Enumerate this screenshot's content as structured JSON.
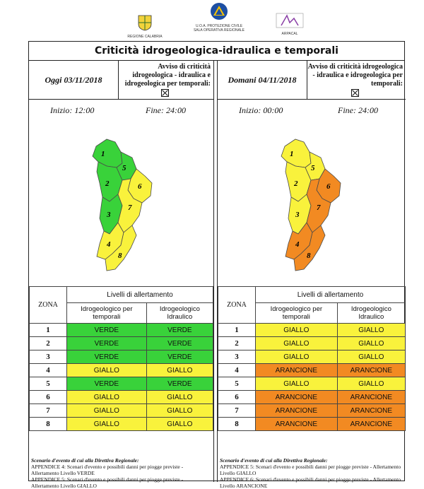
{
  "logos": {
    "regione": "REGIONE CALABRIA",
    "protezione_line1": "U.O.A. PROTEZIONE CIVILE",
    "protezione_line2": "SALA OPERATIVA REGIONALE",
    "arpacal": "ARPACAL"
  },
  "title": "Criticità idrogeologica-idraulica e temporali",
  "avviso_text": "Avviso di criticità idrogeologica - idraulica e idrogeologica per temporali:",
  "table_labels": {
    "zona": "ZONA",
    "livelli": "Livelli di allertamento",
    "col1": "Idrogeologico per temporali",
    "col2": "Idrogeologico Idraulico"
  },
  "panels": [
    {
      "date": "Oggi 03/11/2018",
      "inizio": "Inizio: 12:00",
      "fine": "Fine: 24:00",
      "rows": [
        {
          "zona": "1",
          "temporali": "VERDE",
          "idraulico": "VERDE",
          "c1": "verde",
          "c2": "verde"
        },
        {
          "zona": "2",
          "temporali": "VERDE",
          "idraulico": "VERDE",
          "c1": "verde",
          "c2": "verde"
        },
        {
          "zona": "3",
          "temporali": "VERDE",
          "idraulico": "VERDE",
          "c1": "verde",
          "c2": "verde"
        },
        {
          "zona": "4",
          "temporali": "GIALLO",
          "idraulico": "GIALLO",
          "c1": "giallo",
          "c2": "giallo"
        },
        {
          "zona": "5",
          "temporali": "VERDE",
          "idraulico": "VERDE",
          "c1": "verde",
          "c2": "verde"
        },
        {
          "zona": "6",
          "temporali": "GIALLO",
          "idraulico": "GIALLO",
          "c1": "giallo",
          "c2": "giallo"
        },
        {
          "zona": "7",
          "temporali": "GIALLO",
          "idraulico": "GIALLO",
          "c1": "giallo",
          "c2": "giallo"
        },
        {
          "zona": "8",
          "temporali": "GIALLO",
          "idraulico": "GIALLO",
          "c1": "giallo",
          "c2": "giallo"
        }
      ],
      "scenario_lead": "Scenario d'evento di cui alla Direttiva Regionale:",
      "scenario_1": "APPENDICE 4: Scenari d'evento e possibili danni per piogge previste - Allertamento Livello VERDE",
      "scenario_2": "APPENDICE 5: Scenari d'evento e possibili danni per piogge previste - Allertamento Livello GIALLO"
    },
    {
      "date": "Domani 04/11/2018",
      "inizio": "Inizio: 00:00",
      "fine": "Fine: 24:00",
      "rows": [
        {
          "zona": "1",
          "temporali": "GIALLO",
          "idraulico": "GIALLO",
          "c1": "giallo",
          "c2": "giallo"
        },
        {
          "zona": "2",
          "temporali": "GIALLO",
          "idraulico": "GIALLO",
          "c1": "giallo",
          "c2": "giallo"
        },
        {
          "zona": "3",
          "temporali": "GIALLO",
          "idraulico": "GIALLO",
          "c1": "giallo",
          "c2": "giallo"
        },
        {
          "zona": "4",
          "temporali": "ARANCIONE",
          "idraulico": "ARANCIONE",
          "c1": "arancione",
          "c2": "arancione"
        },
        {
          "zona": "5",
          "temporali": "GIALLO",
          "idraulico": "GIALLO",
          "c1": "giallo",
          "c2": "giallo"
        },
        {
          "zona": "6",
          "temporali": "ARANCIONE",
          "idraulico": "ARANCIONE",
          "c1": "arancione",
          "c2": "arancione"
        },
        {
          "zona": "7",
          "temporali": "ARANCIONE",
          "idraulico": "ARANCIONE",
          "c1": "arancione",
          "c2": "arancione"
        },
        {
          "zona": "8",
          "temporali": "ARANCIONE",
          "idraulico": "ARANCIONE",
          "c1": "arancione",
          "c2": "arancione"
        }
      ],
      "scenario_lead": "Scenario d'evento di cui alla Direttiva Regionale:",
      "scenario_1": "APPENDICE 5: Scenari d'evento e possibili danni per piogge previste - Allertamento Livello GIALLO",
      "scenario_2": "APPENDICE 6: Scenari d'evento e possibili danni per piogge previste - Allertamento Livello ARANCIONE"
    }
  ],
  "map_colors": {
    "left": {
      "1": "#39d23a",
      "2": "#39d23a",
      "3": "#39d23a",
      "4": "#f9f23c",
      "5": "#39d23a",
      "6": "#f9f23c",
      "7": "#f9f23c",
      "8": "#f9f23c"
    },
    "right": {
      "1": "#f9f23c",
      "2": "#f9f23c",
      "3": "#f9f23c",
      "4": "#f28a22",
      "5": "#f9f23c",
      "6": "#f28a22",
      "7": "#f28a22",
      "8": "#f28a22"
    }
  },
  "zone_labels": [
    "1",
    "2",
    "3",
    "4",
    "5",
    "6",
    "7",
    "8"
  ]
}
